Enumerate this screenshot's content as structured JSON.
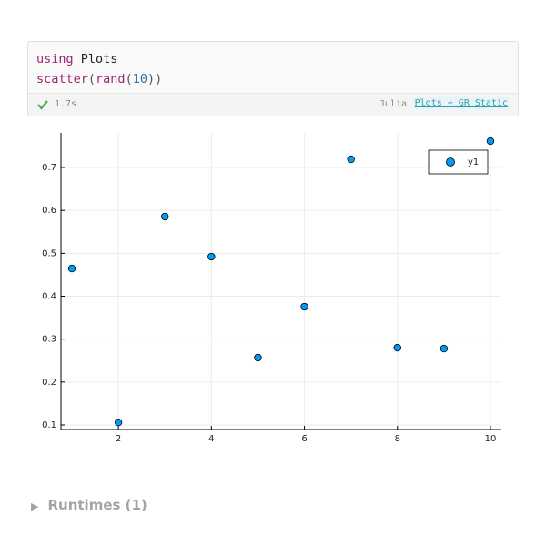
{
  "code_cell": {
    "lines": [
      [
        {
          "text": "using",
          "color": "#a0246f"
        },
        {
          "text": " Plots",
          "color": "#222222"
        }
      ],
      [
        {
          "text": "scatter",
          "color": "#a0246f"
        },
        {
          "text": "(",
          "color": "#555555"
        },
        {
          "text": "rand",
          "color": "#a0246f"
        },
        {
          "text": "(",
          "color": "#555555"
        },
        {
          "text": "10",
          "color": "#2a6fa6"
        },
        {
          "text": "))",
          "color": "#555555"
        }
      ]
    ],
    "runtime": "1.7s",
    "language": "Julia",
    "environment": "Plots + GR Static"
  },
  "chart_data": {
    "type": "scatter",
    "x": [
      1,
      2,
      3,
      4,
      5,
      6,
      7,
      8,
      9,
      10
    ],
    "series": [
      {
        "name": "y1",
        "color": "#009af9",
        "values": [
          0.4646,
          0.106,
          0.5855,
          0.4922,
          0.2569,
          0.3756,
          0.719,
          0.28,
          0.278,
          0.7614
        ]
      }
    ],
    "xlim": [
      0.765,
      10.235
    ],
    "xticks": [
      2,
      4,
      6,
      8,
      10
    ],
    "ylim": [
      0.0894,
      0.7806
    ],
    "yticks": [
      0.1,
      0.2,
      0.3,
      0.4,
      0.5,
      0.6,
      0.7
    ],
    "grid": true,
    "legend_position": "topright"
  },
  "runtimes": "Runtimes (1)"
}
